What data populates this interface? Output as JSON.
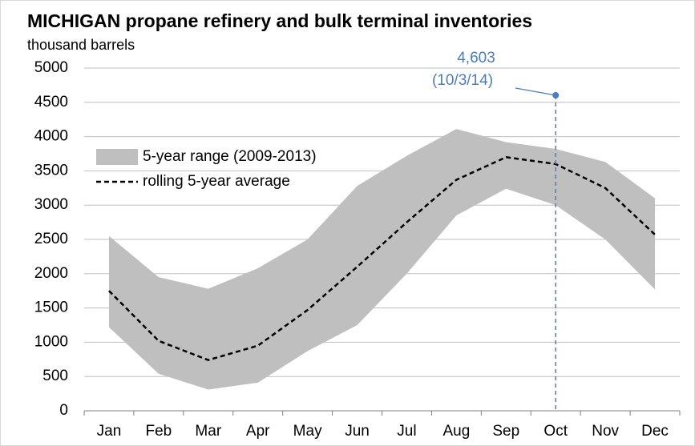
{
  "chart_data": {
    "type": "range-line",
    "title": "MICHIGAN propane refinery and bulk terminal inventories",
    "subtitle": "thousand barrels",
    "categories": [
      "Jan",
      "Feb",
      "Mar",
      "Apr",
      "May",
      "Jun",
      "Jul",
      "Aug",
      "Sep",
      "Oct",
      "Nov",
      "Dec"
    ],
    "series": [
      {
        "name": "5-year range (2009-2013)",
        "color": "#bfbfbf",
        "low": [
          1220,
          540,
          310,
          410,
          870,
          1250,
          2000,
          2850,
          3240,
          3000,
          2500,
          1770
        ],
        "high": [
          2550,
          1950,
          1780,
          2080,
          2500,
          3280,
          3720,
          4110,
          3920,
          3820,
          3630,
          3100
        ]
      },
      {
        "name": "rolling 5-year average",
        "color": "#000000",
        "values": [
          1750,
          1020,
          740,
          950,
          1470,
          2100,
          2750,
          3370,
          3700,
          3600,
          3250,
          2570
        ]
      }
    ],
    "annotation": {
      "x": "Oct",
      "value": 4603,
      "label": "4,603",
      "date": "(10/3/14)",
      "color": "#4a7ebb"
    },
    "ylim": [
      0,
      5000
    ],
    "yticks": [
      0,
      500,
      1000,
      1500,
      2000,
      2500,
      3000,
      3500,
      4000,
      4500,
      5000
    ],
    "grid": true
  }
}
